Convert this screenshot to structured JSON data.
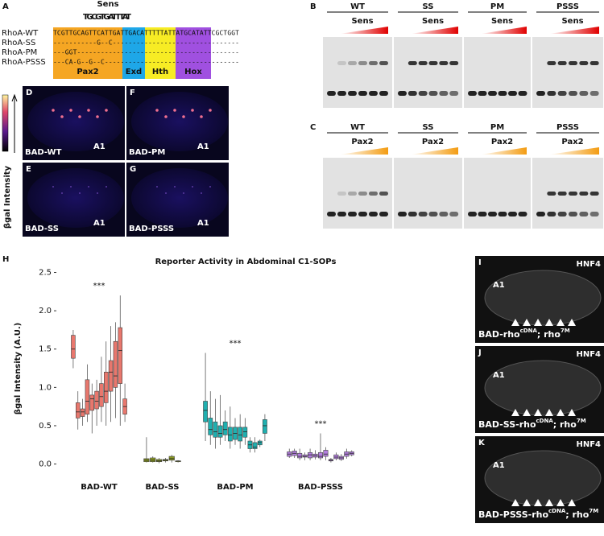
{
  "panel_a": {
    "letter": "A",
    "logo_label": "Sens",
    "logo": "TGCGTGATTTAT",
    "rows": [
      {
        "name": "RhoA-WT",
        "seq": "TCGTTGCAGTTCATTGATTGACATTTTTATTATGCATATTCGCTGGT"
      },
      {
        "name": "RhoA-SS",
        "seq": "-----------G--C--------------------------------"
      },
      {
        "name": "RhoA-PM",
        "seq": "---GGT-----------------------------------------"
      },
      {
        "name": "RhoA-PSSS",
        "seq": "---CA-G--G--C----------------------------------"
      }
    ],
    "regions": [
      "Pax2",
      "Exd",
      "Hth",
      "Hox"
    ]
  },
  "panels_dg": {
    "colorbar_label": "βgal Intensity",
    "tiles": [
      {
        "letter": "D",
        "label": "BAD-WT",
        "segment": "A1"
      },
      {
        "letter": "F",
        "label": "BAD-PM",
        "segment": "A1"
      },
      {
        "letter": "E",
        "label": "BAD-SS",
        "segment": "A1"
      },
      {
        "letter": "G",
        "label": "BAD-PSSS",
        "segment": "A1"
      }
    ]
  },
  "panel_b": {
    "letter": "B",
    "protein": "Sens",
    "groups": [
      "WT",
      "SS",
      "PM",
      "PSSS"
    ]
  },
  "panel_c": {
    "letter": "C",
    "protein": "Pax2",
    "groups": [
      "WT",
      "SS",
      "PM",
      "PSSS"
    ]
  },
  "chart_data": {
    "type": "box",
    "letter": "H",
    "title": "Reporter Activity in Abdominal C1-SOPs",
    "y_label": "βgal Intensity (A.U.)",
    "ylim": [
      -0.12,
      2.6
    ],
    "yticks": [
      {
        "value": 0,
        "label": "0.0"
      },
      {
        "value": 0.5,
        "label": "0.5"
      },
      {
        "value": 1,
        "label": "1.0"
      },
      {
        "value": 1.5,
        "label": "1.5"
      },
      {
        "value": 2,
        "label": "2.0"
      },
      {
        "value": 2.5,
        "label": "2.5"
      }
    ],
    "significance": [
      "***",
      null,
      "***",
      "***"
    ],
    "series": [
      {
        "name": "BAD-WT",
        "color": "#e8776d",
        "boxes": [
          [
            1.25,
            1.38,
            1.5,
            1.68,
            1.75
          ],
          [
            0.45,
            0.6,
            0.68,
            0.8,
            0.95
          ],
          [
            0.5,
            0.62,
            0.68,
            0.72,
            0.85
          ],
          [
            0.55,
            0.65,
            0.82,
            1.1,
            1.3
          ],
          [
            0.4,
            0.7,
            0.85,
            0.9,
            1.05
          ],
          [
            0.5,
            0.72,
            0.82,
            0.95,
            1.1
          ],
          [
            0.55,
            0.75,
            0.88,
            1.05,
            1.4
          ],
          [
            0.5,
            0.8,
            0.95,
            1.2,
            1.6
          ],
          [
            0.55,
            0.95,
            1.2,
            1.35,
            1.8
          ],
          [
            0.6,
            1.0,
            1.15,
            1.6,
            1.85
          ],
          [
            0.5,
            1.05,
            1.48,
            1.78,
            2.2
          ],
          [
            0.55,
            0.65,
            0.75,
            0.85,
            1.05
          ]
        ]
      },
      {
        "name": "BAD-SS",
        "color": "#8a9a20",
        "boxes": [
          [
            0.02,
            0.03,
            0.05,
            0.07,
            0.35
          ],
          [
            0.02,
            0.03,
            0.05,
            0.08,
            0.1
          ],
          [
            0.01,
            0.03,
            0.04,
            0.06,
            0.08
          ],
          [
            0.02,
            0.04,
            0.05,
            0.06,
            0.08
          ],
          [
            0.02,
            0.05,
            0.07,
            0.1,
            0.12
          ],
          [
            0.02,
            0.03,
            0.04,
            0.04,
            0.05
          ]
        ]
      },
      {
        "name": "BAD-PM",
        "color": "#1fb0b0",
        "boxes": [
          [
            0.3,
            0.55,
            0.7,
            0.82,
            1.45
          ],
          [
            0.25,
            0.38,
            0.45,
            0.6,
            0.95
          ],
          [
            0.2,
            0.35,
            0.42,
            0.55,
            0.85
          ],
          [
            0.25,
            0.35,
            0.4,
            0.5,
            0.9
          ],
          [
            0.3,
            0.38,
            0.45,
            0.55,
            0.7
          ],
          [
            0.2,
            0.3,
            0.38,
            0.48,
            0.75
          ],
          [
            0.25,
            0.32,
            0.4,
            0.48,
            0.6
          ],
          [
            0.2,
            0.3,
            0.38,
            0.48,
            0.65
          ],
          [
            0.25,
            0.35,
            0.42,
            0.48,
            0.6
          ],
          [
            0.15,
            0.2,
            0.25,
            0.3,
            0.35
          ],
          [
            0.15,
            0.2,
            0.22,
            0.28,
            0.35
          ],
          [
            0.22,
            0.25,
            0.28,
            0.3,
            0.32
          ],
          [
            0.3,
            0.4,
            0.5,
            0.58,
            0.65
          ]
        ]
      },
      {
        "name": "BAD-PSSS",
        "color": "#b47fe0",
        "boxes": [
          [
            0.08,
            0.1,
            0.13,
            0.16,
            0.2
          ],
          [
            0.08,
            0.11,
            0.14,
            0.17,
            0.2
          ],
          [
            0.05,
            0.08,
            0.1,
            0.14,
            0.2
          ],
          [
            0.05,
            0.09,
            0.1,
            0.12,
            0.15
          ],
          [
            0.05,
            0.08,
            0.12,
            0.15,
            0.2
          ],
          [
            0.06,
            0.09,
            0.11,
            0.13,
            0.18
          ],
          [
            0.05,
            0.08,
            0.1,
            0.15,
            0.4
          ],
          [
            0.05,
            0.1,
            0.13,
            0.18,
            0.22
          ],
          [
            0.02,
            0.04,
            0.05,
            0.06,
            0.08
          ],
          [
            0.05,
            0.07,
            0.09,
            0.12,
            0.15
          ],
          [
            0.04,
            0.06,
            0.08,
            0.1,
            0.13
          ],
          [
            0.07,
            0.1,
            0.13,
            0.16,
            0.2
          ],
          [
            0.1,
            0.12,
            0.14,
            0.16,
            0.18
          ]
        ]
      }
    ]
  },
  "panels_ik": [
    {
      "letter": "I",
      "stain": "HNF4",
      "segment": "A1",
      "label_parts": [
        "BAD-rho",
        "cDNA",
        "; rho",
        "7M"
      ]
    },
    {
      "letter": "J",
      "stain": "HNF4",
      "segment": "A1",
      "label_parts": [
        "BAD-SS-rho",
        "cDNA",
        "; rho",
        "7M"
      ]
    },
    {
      "letter": "K",
      "stain": "HNF4",
      "segment": "A1",
      "label_parts": [
        "BAD-PSSS-rho",
        "cDNA",
        "; rho",
        "7M"
      ]
    }
  ]
}
